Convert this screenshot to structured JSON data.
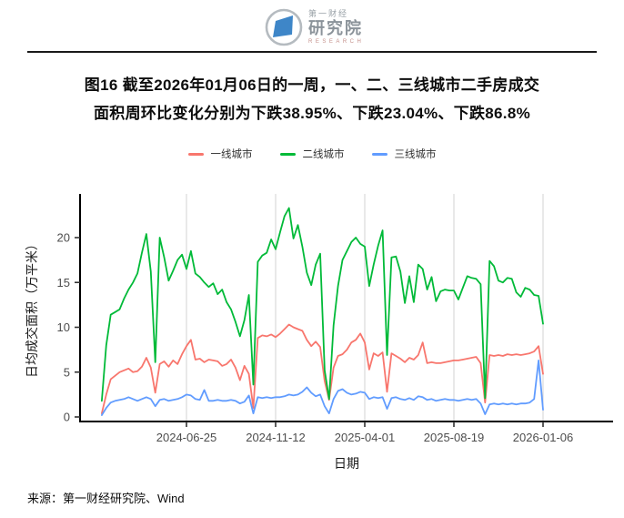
{
  "header": {
    "brand_line1": "第一财经",
    "brand_line2": "研究院",
    "brand_sub": "RESEARCH",
    "logo_blue": "#3e86c8",
    "logo_ring": "#b5bbc0"
  },
  "title": {
    "line1": "图16  截至2026年01月06日的一周，一、二、三线城市二手房成交",
    "line2": "面积周环比变化分别为下跌38.95%、下跌23.04%、下跌86.8%"
  },
  "legend": [
    {
      "label": "一线城市",
      "color": "#F8766D"
    },
    {
      "label": "二线城市",
      "color": "#00BA38"
    },
    {
      "label": "三线城市",
      "color": "#619CFF"
    }
  ],
  "source": "来源：第一财经研究院、Wind",
  "chart_data": {
    "type": "line",
    "xlabel": "日期",
    "ylabel": "日均成交面积（万平米）",
    "x_unit": "week",
    "grid": "vertical-only",
    "legend_position": "top-center",
    "ylim": [
      0,
      24.9
    ],
    "y_ticks": [
      0,
      5,
      10,
      15,
      20
    ],
    "x_ticks": [
      {
        "index": 19,
        "label": "2024-06-25"
      },
      {
        "index": 39,
        "label": "2024-11-12"
      },
      {
        "index": 59,
        "label": "2025-04-01"
      },
      {
        "index": 79,
        "label": "2025-08-19"
      },
      {
        "index": 99,
        "label": "2026-01-06"
      }
    ],
    "series": [
      {
        "name": "一线城市",
        "color": "#F8766D",
        "values": [
          0.4,
          2.5,
          4.2,
          4.6,
          5.0,
          5.2,
          5.4,
          5.0,
          5.1,
          5.6,
          6.6,
          5.5,
          2.7,
          5.9,
          6.2,
          5.6,
          6.3,
          5.9,
          7.0,
          7.9,
          8.6,
          6.4,
          6.5,
          6.1,
          6.4,
          6.3,
          6.2,
          5.7,
          5.9,
          6.4,
          5.5,
          4.1,
          5.7,
          4.8,
          1.0,
          8.8,
          9.1,
          9.0,
          9.2,
          8.9,
          9.3,
          9.8,
          10.3,
          10.0,
          9.8,
          9.6,
          8.6,
          7.9,
          8.4,
          7.8,
          4.0,
          1.9,
          5.5,
          6.8,
          7.0,
          7.5,
          8.3,
          8.6,
          9.3,
          8.3,
          5.3,
          7.1,
          6.8,
          7.2,
          2.8,
          7.1,
          6.8,
          6.5,
          6.1,
          6.6,
          6.4,
          6.9,
          8.3,
          6.0,
          6.1,
          6.0,
          6.0,
          6.1,
          6.2,
          6.3,
          6.3,
          6.4,
          6.5,
          6.6,
          6.7,
          6.0,
          1.6,
          6.9,
          6.8,
          6.9,
          6.8,
          7.0,
          6.9,
          7.0,
          6.9,
          7.0,
          7.1,
          7.3,
          7.9,
          4.8
        ]
      },
      {
        "name": "二线城市",
        "color": "#00BA38",
        "values": [
          1.8,
          8.0,
          11.4,
          11.7,
          12.0,
          13.2,
          14.2,
          15.0,
          16.0,
          18.3,
          20.4,
          16.2,
          6.1,
          20.0,
          17.8,
          15.2,
          16.3,
          17.5,
          18.1,
          16.5,
          18.5,
          16.0,
          15.6,
          15.0,
          14.5,
          14.9,
          13.7,
          14.2,
          12.8,
          12.0,
          10.6,
          9.0,
          10.8,
          13.6,
          3.6,
          17.3,
          18.0,
          18.3,
          19.8,
          18.7,
          20.6,
          22.4,
          23.3,
          19.9,
          21.4,
          19.0,
          16.1,
          14.7,
          17.0,
          18.2,
          5.2,
          2.0,
          10.2,
          14.6,
          17.5,
          18.5,
          19.5,
          20.0,
          19.3,
          19.0,
          14.6,
          17.0,
          19.1,
          20.8,
          6.9,
          17.8,
          17.9,
          16.2,
          12.7,
          15.7,
          12.8,
          17.0,
          16.5,
          14.2,
          15.6,
          12.9,
          14.0,
          14.2,
          14.1,
          14.1,
          13.1,
          14.4,
          15.7,
          15.5,
          15.4,
          14.8,
          2.1,
          17.4,
          16.8,
          15.2,
          15.0,
          15.5,
          15.4,
          13.9,
          13.4,
          14.4,
          14.2,
          13.6,
          13.5,
          10.4
        ]
      },
      {
        "name": "三线城市",
        "color": "#619CFF",
        "values": [
          0.2,
          1.0,
          1.6,
          1.8,
          1.9,
          2.0,
          2.2,
          2.0,
          1.8,
          2.0,
          2.2,
          2.0,
          1.2,
          1.9,
          2.0,
          1.8,
          1.9,
          2.0,
          2.2,
          2.5,
          2.4,
          2.0,
          1.9,
          3.0,
          1.8,
          1.8,
          1.9,
          1.8,
          1.8,
          1.9,
          1.8,
          1.5,
          1.7,
          2.4,
          0.4,
          2.2,
          2.1,
          2.2,
          2.1,
          2.2,
          2.2,
          2.3,
          2.5,
          2.4,
          2.5,
          2.8,
          3.3,
          2.7,
          2.3,
          2.5,
          1.2,
          0.4,
          2.0,
          2.9,
          3.1,
          2.7,
          2.5,
          2.6,
          2.8,
          2.7,
          2.0,
          2.2,
          2.1,
          2.2,
          0.9,
          2.1,
          2.2,
          2.0,
          1.9,
          2.1,
          1.9,
          2.3,
          2.2,
          1.9,
          2.0,
          1.8,
          1.9,
          2.0,
          1.9,
          1.9,
          1.8,
          1.9,
          2.0,
          1.9,
          2.0,
          1.5,
          0.3,
          1.4,
          1.5,
          1.4,
          1.5,
          1.4,
          1.5,
          1.4,
          1.5,
          1.5,
          1.6,
          2.0,
          6.3,
          0.8
        ]
      }
    ],
    "annotations": "三条周度线；每年春节、五一、国庆所在周出现深V下探；末端（2026-01-06当周）三线城市前一周冲高至约6.3后暴跌86.8%"
  }
}
